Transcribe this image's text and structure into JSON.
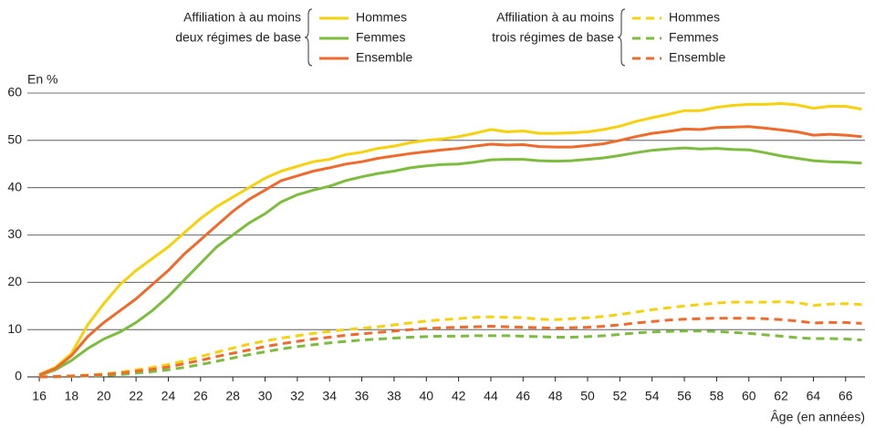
{
  "chart_data": {
    "type": "line",
    "y_label": "En %",
    "x_label": "Âge (en années)",
    "legend_groups": [
      {
        "label_lines": [
          "Affiliation à au moins",
          "deux régimes de base"
        ]
      },
      {
        "label_lines": [
          "Affiliation à au moins",
          "trois régimes de base"
        ]
      }
    ],
    "x": [
      16,
      17,
      18,
      19,
      20,
      21,
      22,
      23,
      24,
      25,
      26,
      27,
      28,
      29,
      30,
      31,
      32,
      33,
      34,
      35,
      36,
      37,
      38,
      39,
      40,
      41,
      42,
      43,
      44,
      45,
      46,
      47,
      48,
      49,
      50,
      51,
      52,
      53,
      54,
      55,
      56,
      57,
      58,
      59,
      60,
      61,
      62,
      63,
      64,
      65,
      66,
      67
    ],
    "series": [
      {
        "name": "Hommes",
        "color": "#f7d20c",
        "style": "solid",
        "group": 0,
        "values": [
          0.5,
          2,
          5,
          11,
          15.5,
          19.5,
          22.5,
          25,
          27.5,
          30.5,
          33.5,
          36,
          38,
          40,
          42,
          43.5,
          44.5,
          45.5,
          46,
          47,
          47.5,
          48.3,
          48.8,
          49.5,
          50,
          50.3,
          50.8,
          51.5,
          52.3,
          51.8,
          52,
          51.5,
          51.5,
          51.6,
          51.8,
          52.3,
          53,
          54,
          54.8,
          55.5,
          56.3,
          56.3,
          57,
          57.4,
          57.6,
          57.6,
          57.8,
          57.5,
          56.8,
          57.2,
          57.2,
          56.6
        ]
      },
      {
        "name": "Femmes",
        "color": "#7cbd3e",
        "style": "solid",
        "group": 0,
        "values": [
          0.3,
          1.5,
          3.5,
          6,
          8,
          9.5,
          11.5,
          14,
          17,
          20.5,
          24,
          27.5,
          30,
          32.5,
          34.5,
          37,
          38.5,
          39.5,
          40.3,
          41.5,
          42.3,
          43,
          43.5,
          44.2,
          44.6,
          44.9,
          45,
          45.4,
          45.9,
          46,
          46,
          45.7,
          45.6,
          45.7,
          46,
          46.3,
          46.8,
          47.4,
          47.9,
          48.2,
          48.4,
          48.2,
          48.3,
          48.1,
          48,
          47.4,
          46.7,
          46.2,
          45.7,
          45.5,
          45.4,
          45.2
        ]
      },
      {
        "name": "Ensemble",
        "color": "#f06a2c",
        "style": "solid",
        "group": 0,
        "values": [
          0.4,
          1.8,
          4.5,
          8.5,
          11.5,
          14,
          16.5,
          19.5,
          22.5,
          26,
          29,
          32,
          35,
          37.5,
          39.5,
          41.5,
          42.5,
          43.5,
          44.2,
          45,
          45.5,
          46.2,
          46.7,
          47.2,
          47.6,
          48,
          48.3,
          48.8,
          49.2,
          49,
          49.1,
          48.7,
          48.6,
          48.6,
          48.9,
          49.3,
          50,
          50.8,
          51.5,
          51.9,
          52.4,
          52.3,
          52.7,
          52.8,
          52.9,
          52.6,
          52.2,
          51.8,
          51.1,
          51.3,
          51.1,
          50.8
        ]
      },
      {
        "name": "Hommes",
        "color": "#f7d20c",
        "style": "dashed",
        "group": 1,
        "values": [
          0,
          0.1,
          0.2,
          0.4,
          0.6,
          1,
          1.5,
          2,
          2.6,
          3.4,
          4.3,
          5.2,
          6.1,
          6.9,
          7.6,
          8.2,
          8.7,
          9.2,
          9.6,
          10,
          10.3,
          10.6,
          11,
          11.4,
          11.8,
          12.1,
          12.3,
          12.6,
          12.7,
          12.6,
          12.5,
          12.2,
          12.1,
          12.3,
          12.5,
          12.8,
          13.2,
          13.7,
          14.2,
          14.6,
          15,
          15.3,
          15.6,
          15.8,
          15.8,
          15.8,
          15.9,
          15.7,
          15.1,
          15.4,
          15.5,
          15.3
        ]
      },
      {
        "name": "Femmes",
        "color": "#7cbd3e",
        "style": "dashed",
        "group": 1,
        "values": [
          0,
          0,
          0.1,
          0.2,
          0.3,
          0.5,
          0.8,
          1.1,
          1.5,
          2,
          2.6,
          3.3,
          4,
          4.7,
          5.3,
          5.9,
          6.4,
          6.8,
          7.2,
          7.5,
          7.8,
          8,
          8.2,
          8.4,
          8.5,
          8.6,
          8.6,
          8.7,
          8.7,
          8.7,
          8.6,
          8.5,
          8.4,
          8.4,
          8.5,
          8.7,
          9,
          9.3,
          9.5,
          9.6,
          9.7,
          9.7,
          9.6,
          9.4,
          9.2,
          8.9,
          8.6,
          8.3,
          8.1,
          8.1,
          8,
          7.8
        ]
      },
      {
        "name": "Ensemble",
        "color": "#f06a2c",
        "style": "dashed",
        "group": 1,
        "values": [
          0,
          0.1,
          0.2,
          0.3,
          0.5,
          0.8,
          1.2,
          1.6,
          2.1,
          2.8,
          3.5,
          4.3,
          5,
          5.7,
          6.4,
          7,
          7.5,
          8,
          8.4,
          8.8,
          9.1,
          9.4,
          9.7,
          10,
          10.2,
          10.4,
          10.5,
          10.6,
          10.7,
          10.6,
          10.5,
          10.4,
          10.3,
          10.4,
          10.5,
          10.7,
          11,
          11.4,
          11.7,
          12,
          12.2,
          12.3,
          12.4,
          12.4,
          12.4,
          12.3,
          12.1,
          11.8,
          11.4,
          11.5,
          11.5,
          11.3
        ]
      }
    ],
    "xlim": [
      15.26,
      67.2
    ],
    "ylim": [
      0,
      60
    ],
    "xticks": [
      16,
      18,
      20,
      22,
      24,
      26,
      28,
      30,
      32,
      34,
      36,
      38,
      40,
      42,
      44,
      46,
      48,
      50,
      52,
      54,
      56,
      58,
      60,
      62,
      64,
      66
    ],
    "yticks": [
      0,
      10,
      20,
      30,
      40,
      50,
      60
    ],
    "grid": true
  }
}
